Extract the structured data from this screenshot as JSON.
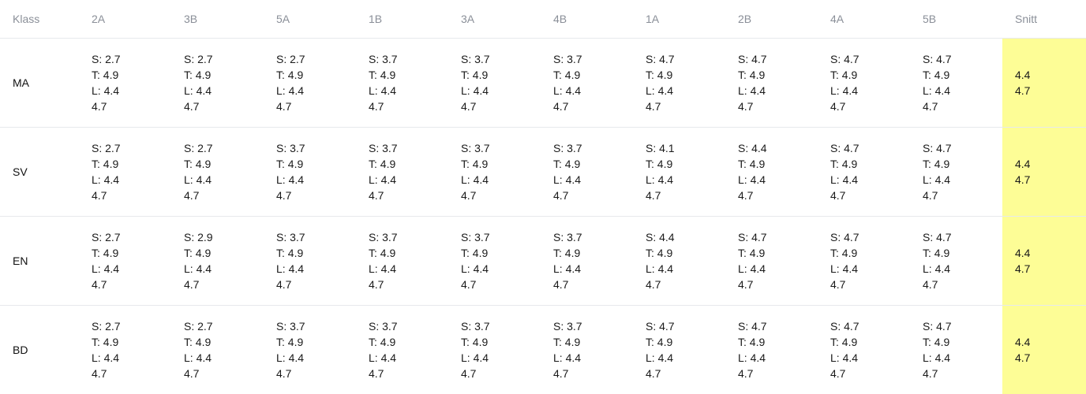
{
  "table": {
    "first_header": "Klass",
    "avg_header": "Snitt",
    "classes": [
      "2A",
      "3B",
      "5A",
      "1B",
      "3A",
      "4B",
      "1A",
      "2B",
      "4A",
      "5B"
    ],
    "rows": [
      {
        "subject": "MA",
        "cells": [
          {
            "s": "S: 2.7",
            "t": "T: 4.9",
            "l": "L: 4.4",
            "v": "4.7"
          },
          {
            "s": "S: 2.7",
            "t": "T: 4.9",
            "l": "L: 4.4",
            "v": "4.7"
          },
          {
            "s": "S: 2.7",
            "t": "T: 4.9",
            "l": "L: 4.4",
            "v": "4.7"
          },
          {
            "s": "S: 3.7",
            "t": "T: 4.9",
            "l": "L: 4.4",
            "v": "4.7"
          },
          {
            "s": "S: 3.7",
            "t": "T: 4.9",
            "l": "L: 4.4",
            "v": "4.7"
          },
          {
            "s": "S: 3.7",
            "t": "T: 4.9",
            "l": "L: 4.4",
            "v": "4.7"
          },
          {
            "s": "S: 4.7",
            "t": "T: 4.9",
            "l": "L: 4.4",
            "v": "4.7"
          },
          {
            "s": "S: 4.7",
            "t": "T: 4.9",
            "l": "L: 4.4",
            "v": "4.7"
          },
          {
            "s": "S: 4.7",
            "t": "T: 4.9",
            "l": "L: 4.4",
            "v": "4.7"
          },
          {
            "s": "S: 4.7",
            "t": "T: 4.9",
            "l": "L: 4.4",
            "v": "4.7"
          }
        ],
        "avg": [
          "4.4",
          "4.7"
        ]
      },
      {
        "subject": "SV",
        "cells": [
          {
            "s": "S: 2.7",
            "t": "T: 4.9",
            "l": "L: 4.4",
            "v": "4.7"
          },
          {
            "s": "S: 2.7",
            "t": "T: 4.9",
            "l": "L: 4.4",
            "v": "4.7"
          },
          {
            "s": "S: 3.7",
            "t": "T: 4.9",
            "l": "L: 4.4",
            "v": "4.7"
          },
          {
            "s": "S: 3.7",
            "t": "T: 4.9",
            "l": "L: 4.4",
            "v": "4.7"
          },
          {
            "s": "S: 3.7",
            "t": "T: 4.9",
            "l": "L: 4.4",
            "v": "4.7"
          },
          {
            "s": "S: 3.7",
            "t": "T: 4.9",
            "l": "L: 4.4",
            "v": "4.7"
          },
          {
            "s": "S: 4.1",
            "t": "T: 4.9",
            "l": "L: 4.4",
            "v": "4.7"
          },
          {
            "s": "S: 4.4",
            "t": "T: 4.9",
            "l": "L: 4.4",
            "v": "4.7"
          },
          {
            "s": "S: 4.7",
            "t": "T: 4.9",
            "l": "L: 4.4",
            "v": "4.7"
          },
          {
            "s": "S: 4.7",
            "t": "T: 4.9",
            "l": "L: 4.4",
            "v": "4.7"
          }
        ],
        "avg": [
          "4.4",
          "4.7"
        ]
      },
      {
        "subject": "EN",
        "cells": [
          {
            "s": "S: 2.7",
            "t": "T: 4.9",
            "l": "L: 4.4",
            "v": "4.7"
          },
          {
            "s": "S: 2.9",
            "t": "T: 4.9",
            "l": "L: 4.4",
            "v": "4.7"
          },
          {
            "s": "S: 3.7",
            "t": "T: 4.9",
            "l": "L: 4.4",
            "v": "4.7"
          },
          {
            "s": "S: 3.7",
            "t": "T: 4.9",
            "l": "L: 4.4",
            "v": "4.7"
          },
          {
            "s": "S: 3.7",
            "t": "T: 4.9",
            "l": "L: 4.4",
            "v": "4.7"
          },
          {
            "s": "S: 3.7",
            "t": "T: 4.9",
            "l": "L: 4.4",
            "v": "4.7"
          },
          {
            "s": "S: 4.4",
            "t": "T: 4.9",
            "l": "L: 4.4",
            "v": "4.7"
          },
          {
            "s": "S: 4.7",
            "t": "T: 4.9",
            "l": "L: 4.4",
            "v": "4.7"
          },
          {
            "s": "S: 4.7",
            "t": "T: 4.9",
            "l": "L: 4.4",
            "v": "4.7"
          },
          {
            "s": "S: 4.7",
            "t": "T: 4.9",
            "l": "L: 4.4",
            "v": "4.7"
          }
        ],
        "avg": [
          "4.4",
          "4.7"
        ]
      },
      {
        "subject": "BD",
        "cells": [
          {
            "s": "S: 2.7",
            "t": "T: 4.9",
            "l": "L: 4.4",
            "v": "4.7"
          },
          {
            "s": "S: 2.7",
            "t": "T: 4.9",
            "l": "L: 4.4",
            "v": "4.7"
          },
          {
            "s": "S: 3.7",
            "t": "T: 4.9",
            "l": "L: 4.4",
            "v": "4.7"
          },
          {
            "s": "S: 3.7",
            "t": "T: 4.9",
            "l": "L: 4.4",
            "v": "4.7"
          },
          {
            "s": "S: 3.7",
            "t": "T: 4.9",
            "l": "L: 4.4",
            "v": "4.7"
          },
          {
            "s": "S: 3.7",
            "t": "T: 4.9",
            "l": "L: 4.4",
            "v": "4.7"
          },
          {
            "s": "S: 4.7",
            "t": "T: 4.9",
            "l": "L: 4.4",
            "v": "4.7"
          },
          {
            "s": "S: 4.7",
            "t": "T: 4.9",
            "l": "L: 4.4",
            "v": "4.7"
          },
          {
            "s": "S: 4.7",
            "t": "T: 4.9",
            "l": "L: 4.4",
            "v": "4.7"
          },
          {
            "s": "S: 4.7",
            "t": "T: 4.9",
            "l": "L: 4.4",
            "v": "4.7"
          }
        ],
        "avg": [
          "4.4",
          "4.7"
        ]
      }
    ]
  },
  "colors": {
    "avg_highlight": "#fdfd96",
    "header_text": "#8a8f98",
    "divider": "#e7e9ec"
  }
}
